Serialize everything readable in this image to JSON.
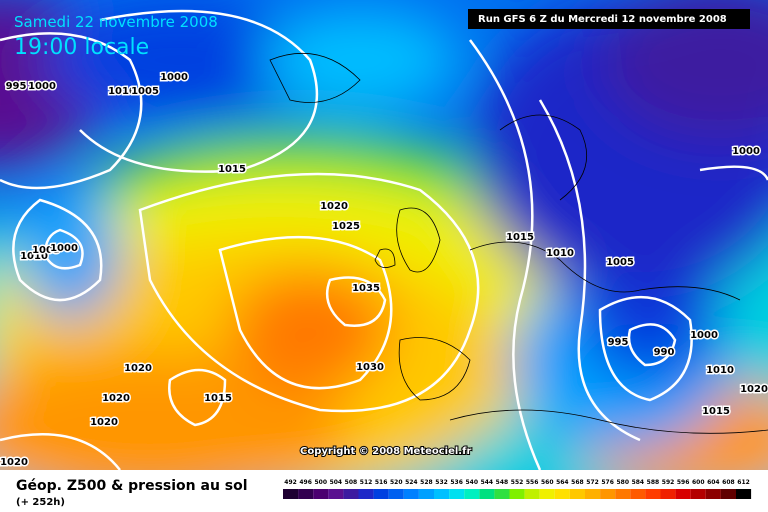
{
  "header": {
    "date": "Samedi 22 novembre 2008",
    "time": "19:00 locale",
    "run": "Run GFS 6 Z du Mercredi 12 novembre 2008"
  },
  "copyright": "Copyright © 2008 Meteociel.fr",
  "footer": {
    "title": "Géop. Z500 & pression au sol",
    "subtitle": "(+ 252h)"
  },
  "isobar_labels": [
    "995",
    "1000",
    "1000",
    "1010",
    "1005",
    "1015",
    "1020",
    "1025",
    "1035",
    "1030",
    "1010",
    "1005",
    "1000",
    "1020",
    "1020",
    "1020",
    "1015",
    "1020",
    "1015",
    "1010",
    "1005",
    "1000",
    "995",
    "990",
    "1000",
    "1010",
    "1020",
    "1015"
  ],
  "legend": {
    "values": [
      492,
      496,
      500,
      504,
      508,
      512,
      516,
      520,
      524,
      528,
      532,
      536,
      540,
      544,
      548,
      552,
      556,
      560,
      564,
      568,
      572,
      576,
      580,
      584,
      588,
      592,
      596,
      600,
      604,
      608,
      612
    ],
    "colors": [
      "#1e0032",
      "#320050",
      "#4b0070",
      "#5a1090",
      "#3c1aa0",
      "#1e28c8",
      "#0040e0",
      "#0060f0",
      "#0080ff",
      "#00a0ff",
      "#00c0ff",
      "#00e0f0",
      "#00f0c0",
      "#00e080",
      "#30e040",
      "#80f000",
      "#c0f000",
      "#f0f000",
      "#ffe000",
      "#ffc800",
      "#ffb000",
      "#ff9600",
      "#ff7800",
      "#ff5a00",
      "#ff3c00",
      "#f02000",
      "#d80000",
      "#b40000",
      "#8c0000",
      "#600000",
      "#000000"
    ]
  }
}
